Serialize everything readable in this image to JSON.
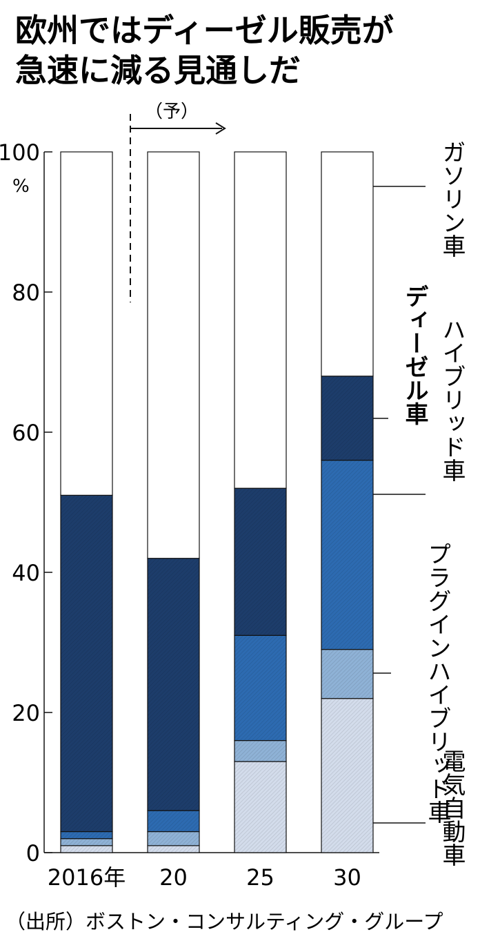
{
  "chart_data": {
    "type": "bar",
    "stacked": true,
    "title_lines": [
      "欧州ではディーゼル販売が",
      "急速に減る見通しだ"
    ],
    "forecast_label": "（予）",
    "categories": [
      "2016年",
      "20",
      "25",
      "30"
    ],
    "ylim": [
      0,
      100
    ],
    "y_ticks": [
      0,
      20,
      40,
      60,
      80,
      100
    ],
    "y_tick_labels": [
      "0",
      "20",
      "40",
      "60",
      "80",
      "100"
    ],
    "y_unit": "%",
    "series": [
      {
        "name": "電気自動車",
        "values": [
          1,
          1,
          13,
          22
        ],
        "color": "#d3dceb"
      },
      {
        "name": "プラグインハイブリッド車",
        "values": [
          1,
          2,
          3,
          7
        ],
        "color": "#8fb2d6"
      },
      {
        "name": "ハイブリッド車",
        "values": [
          1,
          3,
          15,
          27
        ],
        "color": "#2d6bb1"
      },
      {
        "name": "ディーゼル車",
        "values": [
          48,
          36,
          21,
          12
        ],
        "color": "#1d3d6b"
      },
      {
        "name": "ガソリン車",
        "values": [
          49,
          58,
          48,
          32
        ],
        "color": "#ffffff"
      }
    ],
    "source": "（出所）ボストン・コンサルティング・グループ"
  }
}
